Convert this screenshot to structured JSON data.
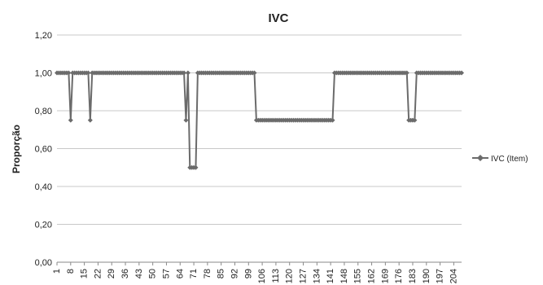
{
  "chart_data": {
    "type": "line",
    "title": "IVC",
    "xlabel": "",
    "ylabel": "Proporção",
    "ylim": [
      0,
      1.2
    ],
    "yticks": [
      "0,00",
      "0,20",
      "0,40",
      "0,60",
      "0,80",
      "1,00",
      "1,20"
    ],
    "yticks_values": [
      0,
      0.2,
      0.4,
      0.6,
      0.8,
      1.0,
      1.2
    ],
    "xlim": [
      1,
      208
    ],
    "x_tick_labels": [
      "1",
      "8",
      "15",
      "22",
      "29",
      "36",
      "43",
      "50",
      "57",
      "64",
      "71",
      "78",
      "85",
      "92",
      "99",
      "106",
      "113",
      "120",
      "127",
      "134",
      "141",
      "148",
      "155",
      "162",
      "169",
      "176",
      "183",
      "190",
      "197",
      "204"
    ],
    "grid": "horizontal",
    "legend": "right",
    "color": "#6b6b6b",
    "series": [
      {
        "name": "IVC (Item)",
        "segments": [
          {
            "from": 1,
            "to": 7,
            "value": 1.0
          },
          {
            "from": 8,
            "to": 8,
            "value": 0.75
          },
          {
            "from": 9,
            "to": 17,
            "value": 1.0
          },
          {
            "from": 18,
            "to": 18,
            "value": 0.75
          },
          {
            "from": 19,
            "to": 66,
            "value": 1.0
          },
          {
            "from": 67,
            "to": 67,
            "value": 0.75
          },
          {
            "from": 68,
            "to": 68,
            "value": 1.0
          },
          {
            "from": 69,
            "to": 72,
            "value": 0.5
          },
          {
            "from": 73,
            "to": 102,
            "value": 1.0
          },
          {
            "from": 103,
            "to": 142,
            "value": 0.75
          },
          {
            "from": 143,
            "to": 180,
            "value": 1.0
          },
          {
            "from": 181,
            "to": 184,
            "value": 0.75
          },
          {
            "from": 185,
            "to": 208,
            "value": 1.0
          }
        ]
      }
    ]
  }
}
